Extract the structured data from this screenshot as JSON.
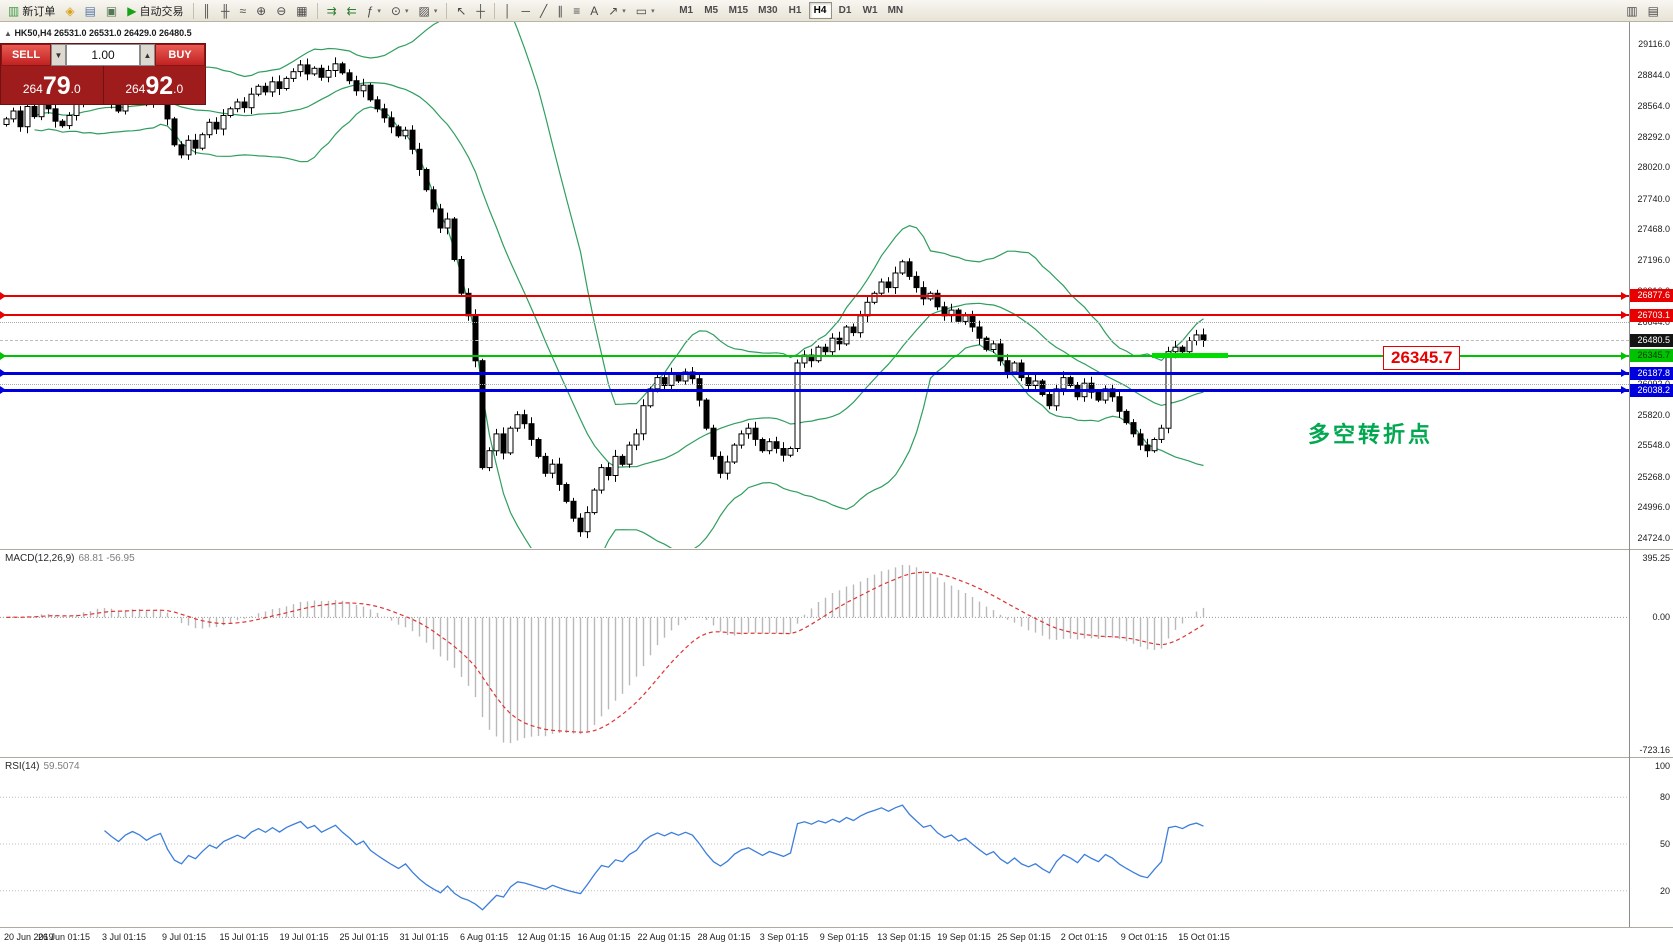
{
  "toolbar": {
    "groups": [
      [
        {
          "name": "new-order-button",
          "icon": "new-order-icon",
          "glyph": "▥",
          "glyph_color": "#3b9c46",
          "label": "新订单"
        },
        {
          "name": "market-watch-button",
          "icon": "market-watch-icon",
          "glyph": "◈",
          "glyph_color": "#d6a419"
        },
        {
          "name": "data-window-button",
          "icon": "data-window-icon",
          "glyph": "▤",
          "glyph_color": "#5577aa"
        },
        {
          "name": "navigator-button",
          "icon": "navigator-icon",
          "glyph": "▣",
          "glyph_color": "#557755"
        },
        {
          "name": "auto-trading-button",
          "icon": "play-icon",
          "glyph": "▶",
          "glyph_color": "#17a317",
          "label": "自动交易"
        }
      ],
      [
        {
          "name": "bar-chart-button",
          "icon": "bar-chart-icon",
          "glyph": "║"
        },
        {
          "name": "candlestick-chart-button",
          "icon": "candlestick-icon",
          "glyph": "╫"
        },
        {
          "name": "line-chart-button",
          "icon": "line-chart-icon",
          "glyph": "≈"
        },
        {
          "name": "zoom-in-button",
          "icon": "zoom-in-icon",
          "glyph": "⊕"
        },
        {
          "name": "zoom-out-button",
          "icon": "zoom-out-icon",
          "glyph": "⊖"
        },
        {
          "name": "tile-windows-button",
          "icon": "tile-windows-icon",
          "glyph": "▦"
        }
      ],
      [
        {
          "name": "auto-scroll-button",
          "icon": "auto-scroll-icon",
          "glyph": "⇉",
          "glyph_color": "#2f7d32"
        },
        {
          "name": "chart-shift-button",
          "icon": "chart-shift-icon",
          "glyph": "⇇",
          "glyph_color": "#2f7d32"
        },
        {
          "name": "indicators-button",
          "icon": "indicators-icon",
          "glyph": "ƒ",
          "arrow": true
        },
        {
          "name": "periods-button",
          "icon": "clock-icon",
          "glyph": "⊙",
          "arrow": true
        },
        {
          "name": "templates-button",
          "icon": "template-icon",
          "glyph": "▨",
          "arrow": true
        }
      ],
      [
        {
          "name": "cursor-button",
          "icon": "cursor-icon",
          "glyph": "↖"
        },
        {
          "name": "crosshair-button",
          "icon": "crosshair-icon",
          "glyph": "┼"
        }
      ],
      [
        {
          "name": "vertical-line-button",
          "icon": "vertical-line-icon",
          "glyph": "│"
        },
        {
          "name": "horizontal-line-button",
          "icon": "horizontal-line-icon",
          "glyph": "─"
        },
        {
          "name": "trendline-button",
          "icon": "trendline-icon",
          "glyph": "╱"
        },
        {
          "name": "channel-button",
          "icon": "channel-icon",
          "glyph": "∥"
        },
        {
          "name": "fibonacci-button",
          "icon": "fibonacci-icon",
          "glyph": "≡"
        },
        {
          "name": "text-tool-button",
          "icon": "text-icon",
          "glyph": "A"
        },
        {
          "name": "arrows-tool-button",
          "icon": "arrow-tool-icon",
          "glyph": "↗",
          "arrow": true
        },
        {
          "name": "shapes-tool-button",
          "icon": "shapes-icon",
          "glyph": "▭",
          "arrow": true
        }
      ]
    ],
    "timeframes": [
      "M1",
      "M5",
      "M15",
      "M30",
      "H1",
      "H4",
      "D1",
      "W1",
      "MN"
    ],
    "active_timeframe": "H4",
    "right_items": [
      {
        "name": "print-button",
        "icon": "printer-icon",
        "glyph": "▥"
      },
      {
        "name": "window-list-button",
        "icon": "window-icon",
        "glyph": "▤"
      }
    ]
  },
  "symbol_info": {
    "marker": "▲",
    "text": "HK50,H4 26531.0 26531.0 26429.0 26480.5"
  },
  "order_panel": {
    "sell_label": "SELL",
    "buy_label": "BUY",
    "volume": "1.00",
    "sell_price": "26479.0",
    "buy_price": "26492.0"
  },
  "main_chart": {
    "y_axis_labels": [
      "29116.0",
      "28844.0",
      "28564.0",
      "28292.0",
      "28020.0",
      "27740.0",
      "27468.0",
      "27196.0",
      "26916.0",
      "26644.0",
      "26372.0",
      "26092.0",
      "25820.0",
      "25548.0",
      "25268.0",
      "24996.0",
      "24724.0"
    ],
    "levels": [
      {
        "value": 26877.6,
        "label": "26877.6",
        "color": "#e80000",
        "text_color": "#ffffff",
        "thickness": 2
      },
      {
        "value": 26703.1,
        "label": "26703.1",
        "color": "#e80000",
        "text_color": "#ffffff",
        "thickness": 2
      },
      {
        "value": 26345.7,
        "label": "26345.7",
        "color": "#00c300",
        "text_color": "#053305",
        "thickness": 2
      },
      {
        "value": 26187.8,
        "label": "26187.8",
        "color": "#0000dc",
        "text_color": "#ffffff",
        "thickness": 3
      },
      {
        "value": 26038.2,
        "label": "26038.2",
        "color": "#0000dc",
        "text_color": "#ffffff",
        "thickness": 3
      }
    ],
    "guide_lines": [
      26644.0,
      26092.0
    ],
    "current_price": {
      "value": 26480.5,
      "label": "26480.5",
      "bg": "#141414",
      "text_color": "#ffffff"
    },
    "highlight_segment": {
      "value": 26345.7,
      "color": "#00dc00"
    },
    "callout": {
      "text": "26345.7",
      "color": "#e80000"
    },
    "note": {
      "text": "多空转折点",
      "color": "#00a84f"
    }
  },
  "chart_data": {
    "type": "candlestick",
    "symbol": "HK50",
    "timeframe": "H4",
    "ohlc_display": {
      "open": "26531.0",
      "high": "26531.0",
      "low": "26429.0",
      "close": "26480.5"
    },
    "price_axis": {
      "visible_min": 24724.0,
      "visible_max": 29116.0
    },
    "first_open": 28400,
    "closes": [
      28450,
      28520,
      28380,
      28560,
      28470,
      28620,
      28540,
      28430,
      28390,
      28480,
      28610,
      28700,
      28650,
      28760,
      28690,
      28600,
      28520,
      28640,
      28710,
      28660,
      28580,
      28650,
      28700,
      28450,
      28220,
      28130,
      28260,
      28190,
      28310,
      28420,
      28360,
      28480,
      28540,
      28600,
      28550,
      28670,
      28740,
      28690,
      28780,
      28720,
      28810,
      28870,
      28930,
      28850,
      28900,
      28820,
      28880,
      28940,
      28860,
      28790,
      28700,
      28750,
      28620,
      28540,
      28460,
      28380,
      28300,
      28350,
      28180,
      28000,
      27820,
      27650,
      27480,
      27560,
      27200,
      26900,
      26700,
      26300,
      25350,
      25500,
      25650,
      25480,
      25700,
      25820,
      25740,
      25600,
      25450,
      25300,
      25380,
      25200,
      25050,
      24900,
      24780,
      24950,
      25150,
      25350,
      25280,
      25450,
      25380,
      25550,
      25650,
      25900,
      26050,
      26150,
      26080,
      26180,
      26120,
      26200,
      26140,
      25950,
      25700,
      25450,
      25300,
      25400,
      25550,
      25650,
      25700,
      25600,
      25500,
      25580,
      25520,
      25460,
      25520,
      26280,
      26350,
      26300,
      26420,
      26380,
      26500,
      26450,
      26600,
      26550,
      26700,
      26820,
      26900,
      27000,
      26950,
      27080,
      27180,
      27050,
      26950,
      26850,
      26900,
      26780,
      26700,
      26750,
      26650,
      26700,
      26600,
      26500,
      26400,
      26450,
      26300,
      26200,
      26280,
      26150,
      26080,
      26120,
      26000,
      25900,
      26050,
      26150,
      26080,
      25980,
      26100,
      26020,
      25950,
      26050,
      25980,
      25850,
      25750,
      25650,
      25550,
      25500,
      25600,
      25700,
      26380,
      26420,
      26380,
      26480,
      26530,
      26480
    ],
    "bollinger": {
      "period": 20,
      "deviation": 2,
      "color": "#2f9e5e"
    },
    "time_labels": [
      "20 Jun 2019",
      "26 Jun 01:15",
      "3 Jul 01:15",
      "9 Jul 01:15",
      "15 Jul 01:15",
      "19 Jul 01:15",
      "25 Jul 01:15",
      "31 Jul 01:15",
      "6 Aug 01:15",
      "12 Aug 01:15",
      "16 Aug 01:15",
      "22 Aug 01:15",
      "28 Aug 01:15",
      "3 Sep 01:15",
      "9 Sep 01:15",
      "13 Sep 01:15",
      "19 Sep 01:15",
      "25 Sep 01:15",
      "2 Oct 01:15",
      "9 Oct 01:15",
      "15 Oct 01:15"
    ]
  },
  "macd": {
    "name": "MACD(12,26,9)",
    "values": "68.81 -56.95",
    "params": {
      "fast": 12,
      "slow": 26,
      "signal": 9
    },
    "scale_labels": {
      "max": "395.25",
      "zero": "0.00",
      "min": "-723.16"
    },
    "histogram_color": "#b9b9b9",
    "signal_color": "#e03232"
  },
  "rsi": {
    "name": "RSI(14)",
    "value": "59.5074",
    "period": 14,
    "scale_labels": [
      {
        "text": "100",
        "value": 100
      },
      {
        "text": "80",
        "value": 80
      },
      {
        "text": "50",
        "value": 50
      },
      {
        "text": "20",
        "value": 20
      }
    ],
    "levels": [
      80,
      50,
      20
    ],
    "color": "#3c7edc"
  }
}
